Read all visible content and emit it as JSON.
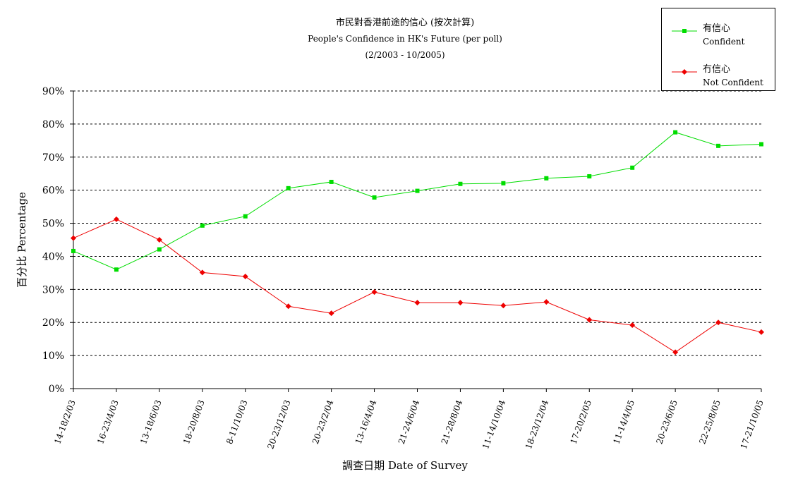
{
  "chart_data": {
    "type": "line",
    "title": "市民對香港前途的信心 (按次計算)",
    "subtitle": "People's Confidence in HK's Future (per poll)",
    "period": "(2/2003 - 10/2005)",
    "xlabel": "調查日期 Date of Survey",
    "ylabel": "百分比 Percentage",
    "ylim": [
      0,
      90
    ],
    "yticks": [
      0,
      10,
      20,
      30,
      40,
      50,
      60,
      70,
      80,
      90
    ],
    "ytick_labels": [
      "0%",
      "10%",
      "20%",
      "30%",
      "40%",
      "50%",
      "60%",
      "70%",
      "80%",
      "90%"
    ],
    "grid": true,
    "legend_position": "top-right",
    "categories": [
      "14-18/2/03",
      "16-23/4/03",
      "13-18/6/03",
      "18-20/8/03",
      "8-11/10/03",
      "20-23/12/03",
      "20-23/2/04",
      "13-16/4/04",
      "21-24/6/04",
      "21-28/8/04",
      "11-14/10/04",
      "18-23/12/04",
      "17-20/2/05",
      "11-14/4/05",
      "20-23/6/05",
      "22-25/8/05",
      "17-21/10/05"
    ],
    "series": [
      {
        "name": "有信心",
        "name_en": "Confident",
        "color": "#00dd00",
        "marker": "square",
        "values": [
          41.6,
          36.0,
          42.1,
          49.3,
          52.1,
          60.6,
          62.5,
          57.8,
          59.8,
          61.9,
          62.1,
          63.6,
          64.2,
          66.8,
          77.5,
          73.4,
          73.9
        ]
      },
      {
        "name": "冇信心",
        "name_en": "Not Confident",
        "color": "#ee0000",
        "marker": "diamond",
        "values": [
          45.5,
          51.2,
          45.0,
          35.1,
          33.9,
          24.9,
          22.8,
          29.2,
          26.0,
          26.0,
          25.1,
          26.2,
          20.8,
          19.2,
          11.0,
          20.0,
          17.1
        ]
      }
    ]
  }
}
